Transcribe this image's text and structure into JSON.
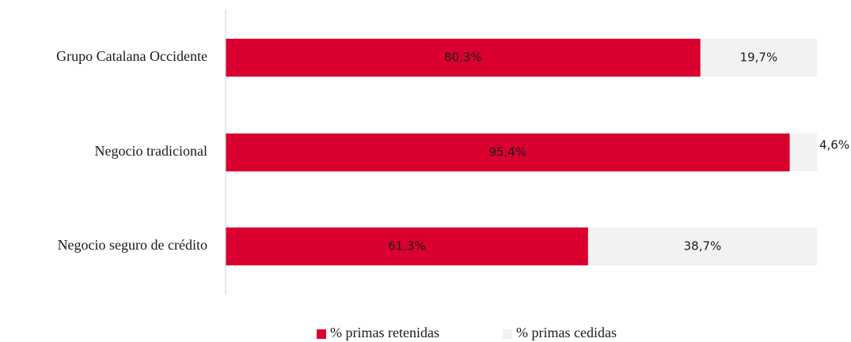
{
  "chart_data": {
    "type": "stacked-bar-horizontal",
    "categories": [
      "Grupo Catalana Occidente",
      "Negocio tradicional",
      "Negocio seguro de crédito"
    ],
    "series": [
      {
        "name": "% primas retenidas",
        "color": "#da0030",
        "values": [
          80.3,
          95.4,
          61.3
        ],
        "value_labels": [
          "80,3%",
          "95,4%",
          "61,3%"
        ]
      },
      {
        "name": "% primas cedidas",
        "color": "#f2f2f2",
        "values": [
          19.7,
          4.6,
          38.7
        ],
        "value_labels": [
          "19,7%",
          "4,6%",
          "38,7%"
        ]
      }
    ],
    "xlim": [
      0,
      100
    ]
  }
}
